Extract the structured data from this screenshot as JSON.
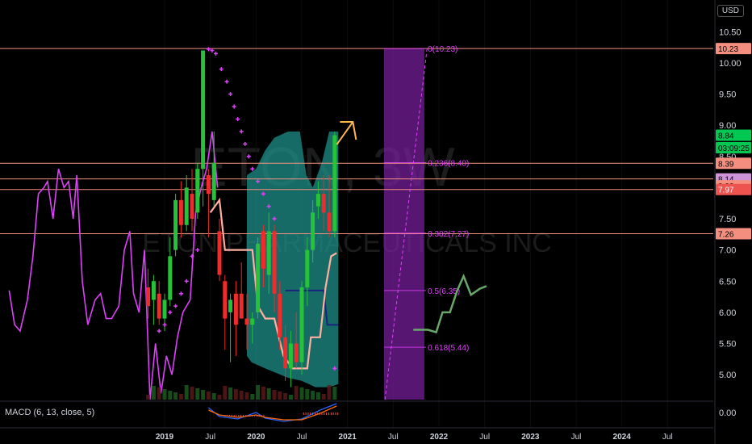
{
  "currency": "USD",
  "macd_label": "MACD (6, 13, close, 5)",
  "watermark": {
    "symbol": "ETON, 3W",
    "company": "ETON PHARMACEUTICALS INC"
  },
  "chart_data": {
    "type": "candlestick",
    "interval": "3W",
    "y_ticks": [
      "10.50",
      "10.00",
      "9.50",
      "9.00",
      "8.50",
      "7.50",
      "7.00",
      "6.50",
      "6.00",
      "5.50",
      "5.00"
    ],
    "ylim": [
      4.6,
      10.75
    ],
    "macd_tick": "0.00",
    "x_ticks": [
      {
        "label": "2019",
        "t": 2019.0,
        "year": true
      },
      {
        "label": "Jul",
        "t": 2019.5,
        "year": false
      },
      {
        "label": "2020",
        "t": 2020.0,
        "year": true
      },
      {
        "label": "Jul",
        "t": 2020.5,
        "year": false
      },
      {
        "label": "2021",
        "t": 2021.0,
        "year": true
      },
      {
        "label": "Jul",
        "t": 2021.5,
        "year": false
      },
      {
        "label": "2022",
        "t": 2022.0,
        "year": true
      },
      {
        "label": "Jul",
        "t": 2022.5,
        "year": false
      },
      {
        "label": "2023",
        "t": 2023.0,
        "year": true
      },
      {
        "label": "Jul",
        "t": 2023.5,
        "year": false
      },
      {
        "label": "2024",
        "t": 2024.0,
        "year": true
      },
      {
        "label": "Jul",
        "t": 2024.5,
        "year": false
      }
    ],
    "xlim": [
      2017.2,
      2025.0
    ],
    "candles": [
      {
        "t": 2018.82,
        "o": 6.4,
        "h": 6.7,
        "l": 5.9,
        "c": 6.1
      },
      {
        "t": 2018.88,
        "o": 6.2,
        "h": 6.6,
        "l": 5.8,
        "c": 6.5
      },
      {
        "t": 2018.94,
        "o": 6.3,
        "h": 6.5,
        "l": 5.8,
        "c": 5.9
      },
      {
        "t": 2019.0,
        "o": 5.9,
        "h": 6.3,
        "l": 5.7,
        "c": 6.2
      },
      {
        "t": 2019.06,
        "o": 6.2,
        "h": 7.2,
        "l": 6.1,
        "c": 6.9
      },
      {
        "t": 2019.12,
        "o": 7.0,
        "h": 7.9,
        "l": 6.9,
        "c": 7.8
      },
      {
        "t": 2019.18,
        "o": 7.8,
        "h": 8.1,
        "l": 7.2,
        "c": 7.4
      },
      {
        "t": 2019.24,
        "o": 7.4,
        "h": 8.2,
        "l": 7.3,
        "c": 8.0
      },
      {
        "t": 2019.3,
        "o": 7.9,
        "h": 8.3,
        "l": 7.3,
        "c": 7.5
      },
      {
        "t": 2019.36,
        "o": 7.6,
        "h": 8.4,
        "l": 7.5,
        "c": 8.3
      },
      {
        "t": 2019.42,
        "o": 8.3,
        "h": 10.2,
        "l": 7.7,
        "c": 10.2
      },
      {
        "t": 2019.48,
        "o": 8.2,
        "h": 8.3,
        "l": 7.2,
        "c": 7.9
      },
      {
        "t": 2019.54,
        "o": 7.8,
        "h": 8.9,
        "l": 7.7,
        "c": 8.4
      },
      {
        "t": 2019.6,
        "o": 7.3,
        "h": 7.5,
        "l": 6.5,
        "c": 6.6
      },
      {
        "t": 2019.66,
        "o": 6.5,
        "h": 6.6,
        "l": 5.4,
        "c": 5.9
      },
      {
        "t": 2019.72,
        "o": 6.0,
        "h": 6.3,
        "l": 5.2,
        "c": 6.2
      },
      {
        "t": 2019.78,
        "o": 6.3,
        "h": 6.5,
        "l": 5.3,
        "c": 5.8
      },
      {
        "t": 2019.84,
        "o": 6.3,
        "h": 6.8,
        "l": 5.9,
        "c": 5.9
      },
      {
        "t": 2019.9,
        "o": 5.9,
        "h": 6.3,
        "l": 5.4,
        "c": 5.8
      },
      {
        "t": 2019.96,
        "o": 5.8,
        "h": 6.0,
        "l": 5.5,
        "c": 5.9
      },
      {
        "t": 2020.02,
        "o": 6.0,
        "h": 7.2,
        "l": 5.9,
        "c": 7.1
      },
      {
        "t": 2020.08,
        "o": 7.3,
        "h": 7.4,
        "l": 6.4,
        "c": 6.7
      },
      {
        "t": 2020.14,
        "o": 6.6,
        "h": 7.6,
        "l": 6.3,
        "c": 7.3
      },
      {
        "t": 2020.2,
        "o": 7.3,
        "h": 7.4,
        "l": 6.0,
        "c": 6.3
      },
      {
        "t": 2020.26,
        "o": 6.3,
        "h": 6.5,
        "l": 5.4,
        "c": 5.6
      },
      {
        "t": 2020.32,
        "o": 5.6,
        "h": 5.8,
        "l": 4.9,
        "c": 5.1
      },
      {
        "t": 2020.38,
        "o": 5.1,
        "h": 5.7,
        "l": 4.8,
        "c": 5.5
      },
      {
        "t": 2020.44,
        "o": 5.5,
        "h": 6.0,
        "l": 5.1,
        "c": 5.2
      },
      {
        "t": 2020.5,
        "o": 5.2,
        "h": 6.5,
        "l": 5.0,
        "c": 6.4
      },
      {
        "t": 2020.56,
        "o": 6.4,
        "h": 7.2,
        "l": 6.1,
        "c": 7.0
      },
      {
        "t": 2020.62,
        "o": 7.0,
        "h": 7.8,
        "l": 6.8,
        "c": 7.6
      },
      {
        "t": 2020.68,
        "o": 7.7,
        "h": 8.1,
        "l": 7.5,
        "c": 7.9
      },
      {
        "t": 2020.74,
        "o": 7.9,
        "h": 8.2,
        "l": 7.3,
        "c": 7.6
      },
      {
        "t": 2020.8,
        "o": 7.6,
        "h": 8.2,
        "l": 7.2,
        "c": 7.3
      },
      {
        "t": 2020.86,
        "o": 7.3,
        "h": 8.9,
        "l": 7.2,
        "c": 8.84
      }
    ],
    "price_tags": [
      {
        "label": "10.23",
        "value": 10.23,
        "color": "#f48f7f"
      },
      {
        "label": "8.84",
        "value": 8.84,
        "color": "#00c853"
      },
      {
        "label": "03:09:25",
        "value": 8.64,
        "color": "#00c853"
      },
      {
        "label": "8.39",
        "value": 8.39,
        "color": "#f48f7f"
      },
      {
        "label": "8.14",
        "value": 8.14,
        "color": "#ce93d8"
      },
      {
        "label": "8.03",
        "value": 8.03,
        "color": "#f48f7f"
      },
      {
        "label": "7.97",
        "value": 7.97,
        "color": "#ef5350"
      },
      {
        "label": "7.26",
        "value": 7.26,
        "color": "#f48f7f"
      }
    ],
    "horizontal_lines": [
      10.23,
      8.39,
      8.14,
      7.97,
      7.26
    ],
    "fib_levels": [
      {
        "label": "0(10.23)",
        "value": 10.23
      },
      {
        "label": "0.236(8.40)",
        "value": 8.4
      },
      {
        "label": "0.382(7.27)",
        "value": 7.27
      },
      {
        "label": "0.5(6.35)",
        "value": 6.35
      },
      {
        "label": "0.618(5.44)",
        "value": 5.44
      }
    ],
    "projection": [
      {
        "t": 2021.72,
        "v": 5.72
      },
      {
        "t": 2021.88,
        "v": 5.72
      },
      {
        "t": 2021.97,
        "v": 5.68
      },
      {
        "t": 2022.04,
        "v": 6.0
      },
      {
        "t": 2022.12,
        "v": 6.0
      },
      {
        "t": 2022.2,
        "v": 6.35
      },
      {
        "t": 2022.27,
        "v": 6.58
      },
      {
        "t": 2022.35,
        "v": 6.28
      },
      {
        "t": 2022.45,
        "v": 6.38
      },
      {
        "t": 2022.52,
        "v": 6.42
      }
    ],
    "colors": {
      "up": "#26c23a",
      "down": "#ef2b2b",
      "cloud": "#1e8f8a",
      "band": "#ffb0a0",
      "oscillator": "#e040fb",
      "fib": "#e040fb",
      "zone": "#7b1fa2",
      "blue": "#1a237e",
      "projection": "#6aa86a"
    }
  }
}
